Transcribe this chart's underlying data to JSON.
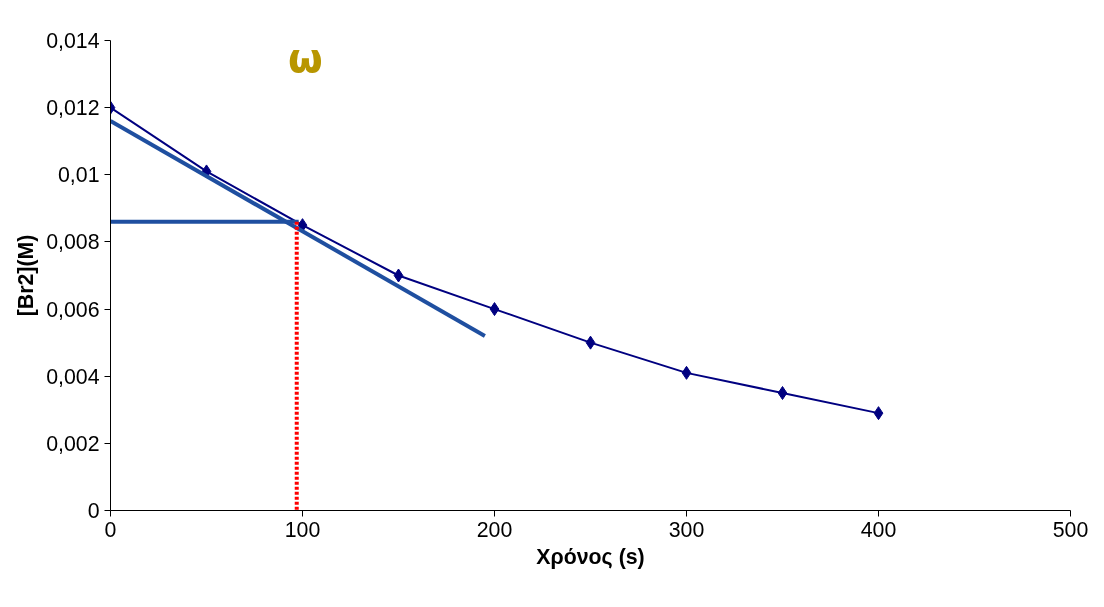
{
  "chart_data": {
    "type": "line",
    "xlabel": "Χρόνος (s)",
    "ylabel": "[Br2](M)",
    "xlim": [
      0,
      500
    ],
    "xticks": [
      0,
      100,
      200,
      300,
      400,
      500
    ],
    "ylim": [
      0,
      0.014
    ],
    "yticks": [
      {
        "value": 0,
        "label": "0"
      },
      {
        "value": 0.002,
        "label": "0,002"
      },
      {
        "value": 0.004,
        "label": "0,004"
      },
      {
        "value": 0.006,
        "label": "0,006"
      },
      {
        "value": 0.008,
        "label": "0,008"
      },
      {
        "value": 0.01,
        "label": "0,01"
      },
      {
        "value": 0.012,
        "label": "0,012"
      },
      {
        "value": 0.014,
        "label": "0,014"
      }
    ],
    "grid": false,
    "marker": "diamond",
    "line_style": "solid",
    "series": [
      {
        "color": "#000080",
        "x": [
          0,
          50,
          100,
          150,
          200,
          250,
          300,
          350,
          400
        ],
        "values": [
          0.012,
          0.0101,
          0.0085,
          0.007,
          0.006,
          0.005,
          0.0041,
          0.0035,
          0.0029
        ]
      },
      {
        "color": "#1f4fa0",
        "x": [
          0,
          195
        ],
        "values": [
          0.0116,
          0.0052
        ],
        "marker": "none"
      },
      {
        "color": "#1f4fa0",
        "x": [
          0,
          98
        ],
        "values": [
          0.0086,
          0.0086
        ],
        "marker": "none"
      },
      {
        "color": "#ff0000",
        "x": [
          97,
          97
        ],
        "values": [
          0.0086,
          0
        ],
        "marker": "none",
        "line_style": "dotted"
      }
    ],
    "annotations": [
      "ω"
    ]
  }
}
